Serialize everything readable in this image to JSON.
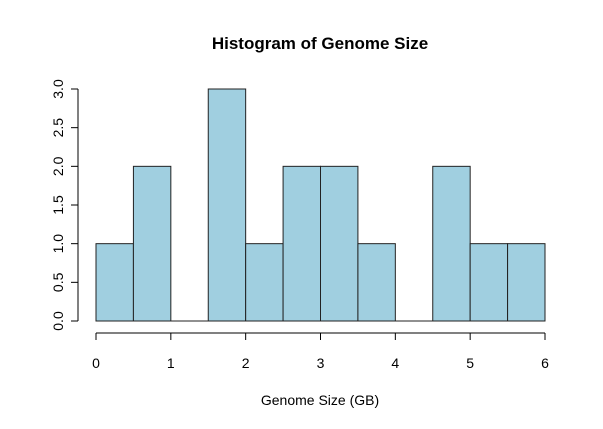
{
  "chart_data": {
    "type": "bar",
    "title": "Histogram of Genome Size",
    "xlabel": "Genome Size (GB)",
    "ylabel": "",
    "bins": [
      {
        "start": 0.0,
        "end": 0.5,
        "count": 1
      },
      {
        "start": 0.5,
        "end": 1.0,
        "count": 2
      },
      {
        "start": 1.0,
        "end": 1.5,
        "count": 0
      },
      {
        "start": 1.5,
        "end": 2.0,
        "count": 3
      },
      {
        "start": 2.0,
        "end": 2.5,
        "count": 1
      },
      {
        "start": 2.5,
        "end": 3.0,
        "count": 2
      },
      {
        "start": 3.0,
        "end": 3.5,
        "count": 2
      },
      {
        "start": 3.5,
        "end": 4.0,
        "count": 1
      },
      {
        "start": 4.0,
        "end": 4.5,
        "count": 0
      },
      {
        "start": 4.5,
        "end": 5.0,
        "count": 2
      },
      {
        "start": 5.0,
        "end": 5.5,
        "count": 1
      },
      {
        "start": 5.5,
        "end": 6.0,
        "count": 1
      }
    ],
    "xlim": [
      0,
      6
    ],
    "ylim": [
      0,
      3
    ],
    "x_ticks": [
      "0",
      "1",
      "2",
      "3",
      "4",
      "5",
      "6"
    ],
    "y_ticks": [
      "0.0",
      "0.5",
      "1.0",
      "1.5",
      "2.0",
      "2.5",
      "3.0"
    ],
    "bar_color": "#a0cfe0",
    "grid": false
  }
}
